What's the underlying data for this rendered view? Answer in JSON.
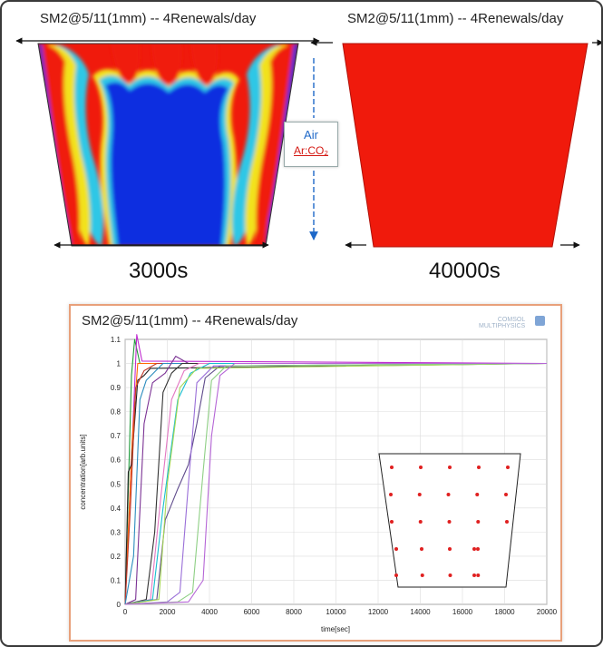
{
  "panels": [
    {
      "title": "SM2@5/11(1mm) -- 4Renewals/day",
      "time": "3000s"
    },
    {
      "title": "SM2@5/11(1mm) -- 4Renewals/day",
      "time": "40000s"
    }
  ],
  "legend": {
    "air": "Air",
    "mixture": "Ar:CO₂"
  },
  "colors": {
    "red": "#f01a0c",
    "blue": "#0a2fe0",
    "arrow_blue": "#1e68c8",
    "card_border": "#e8a07a"
  },
  "logo": {
    "line1": "COMSOL",
    "line2": "MULTIPHYSICS"
  },
  "chart_data": {
    "type": "line",
    "title": "SM2@5/11(1mm) -- 4Renewals/day",
    "xlabel": "time[sec]",
    "ylabel": "concentration[arb.units]",
    "xlim": [
      0,
      20000
    ],
    "ylim": [
      0,
      1.1
    ],
    "xticks": [
      0,
      2000,
      4000,
      6000,
      8000,
      10000,
      12000,
      14000,
      16000,
      18000,
      20000
    ],
    "xtick_labels": [
      "0",
      "2000",
      "4000",
      "6000",
      "8000",
      "10000",
      "12000",
      "14000",
      "16000",
      "18000",
      "20000"
    ],
    "yticks": [
      0,
      0.1,
      0.2,
      0.3,
      0.4,
      0.5,
      0.6,
      0.7,
      0.8,
      0.9,
      1,
      1.1
    ],
    "ytick_labels": [
      "0",
      "0.1",
      "0.2",
      "0.3",
      "0.4",
      "0.5",
      "0.6",
      "0.7",
      "0.8",
      "0.9",
      "1",
      "1.1"
    ],
    "grid": true,
    "series": [
      {
        "color": "#1f9a3a",
        "points": [
          [
            0,
            0
          ],
          [
            300,
            0.95
          ],
          [
            450,
            1.1
          ],
          [
            700,
            1.0
          ],
          [
            20000,
            1.0
          ]
        ]
      },
      {
        "color": "#c02cd0",
        "points": [
          [
            0,
            0
          ],
          [
            400,
            0.8
          ],
          [
            550,
            1.12
          ],
          [
            800,
            1.01
          ],
          [
            20000,
            1.0
          ]
        ]
      },
      {
        "color": "#ff6a00",
        "points": [
          [
            0,
            0
          ],
          [
            350,
            0.7
          ],
          [
            600,
            1.0
          ],
          [
            20000,
            1.0
          ]
        ]
      },
      {
        "color": "#222222",
        "points": [
          [
            0,
            0
          ],
          [
            150,
            0.55
          ],
          [
            300,
            0.58
          ],
          [
            600,
            0.93
          ],
          [
            900,
            0.95
          ],
          [
            1200,
            0.98
          ],
          [
            20000,
            1.0
          ]
        ]
      },
      {
        "color": "#c0392b",
        "points": [
          [
            0,
            0
          ],
          [
            250,
            0.4
          ],
          [
            500,
            0.9
          ],
          [
            900,
            0.97
          ],
          [
            1500,
            1.0
          ],
          [
            20000,
            1.0
          ]
        ]
      },
      {
        "color": "#2b8cbe",
        "points": [
          [
            0,
            0
          ],
          [
            400,
            0.2
          ],
          [
            700,
            0.85
          ],
          [
            1000,
            0.93
          ],
          [
            1800,
            1.0
          ],
          [
            20000,
            1.0
          ]
        ]
      },
      {
        "color": "#7b3294",
        "points": [
          [
            0,
            0
          ],
          [
            500,
            0.02
          ],
          [
            900,
            0.75
          ],
          [
            1300,
            0.92
          ],
          [
            1900,
            0.96
          ],
          [
            2400,
            1.03
          ],
          [
            3000,
            1.0
          ],
          [
            20000,
            1.0
          ]
        ]
      },
      {
        "color": "#333333",
        "points": [
          [
            0,
            0
          ],
          [
            1000,
            0.02
          ],
          [
            1400,
            0.3
          ],
          [
            1800,
            0.88
          ],
          [
            2200,
            0.96
          ],
          [
            2700,
            1.0
          ],
          [
            20000,
            1.0
          ]
        ]
      },
      {
        "color": "#e377c2",
        "points": [
          [
            0,
            0
          ],
          [
            1200,
            0.02
          ],
          [
            1700,
            0.45
          ],
          [
            2200,
            0.85
          ],
          [
            2800,
            0.97
          ],
          [
            3500,
            1.0
          ],
          [
            20000,
            1.0
          ]
        ]
      },
      {
        "color": "#17becf",
        "points": [
          [
            0,
            0
          ],
          [
            1300,
            0.02
          ],
          [
            1800,
            0.4
          ],
          [
            2500,
            0.85
          ],
          [
            3100,
            0.96
          ],
          [
            4000,
            1.0
          ],
          [
            20000,
            1.0
          ]
        ]
      },
      {
        "color": "#5f4b8b",
        "points": [
          [
            0,
            0
          ],
          [
            1500,
            0.02
          ],
          [
            1900,
            0.35
          ],
          [
            2500,
            0.48
          ],
          [
            3000,
            0.58
          ],
          [
            3400,
            0.75
          ],
          [
            3800,
            0.94
          ],
          [
            4500,
            0.99
          ],
          [
            20000,
            1.0
          ]
        ]
      },
      {
        "color": "#a6d854",
        "points": [
          [
            0,
            0
          ],
          [
            1600,
            0.02
          ],
          [
            2000,
            0.5
          ],
          [
            2600,
            0.9
          ],
          [
            3400,
            0.98
          ],
          [
            20000,
            1.0
          ]
        ]
      },
      {
        "color": "#9a6fd8",
        "points": [
          [
            0,
            0
          ],
          [
            2000,
            0.01
          ],
          [
            2600,
            0.05
          ],
          [
            3000,
            0.5
          ],
          [
            3400,
            0.92
          ],
          [
            4200,
            0.99
          ],
          [
            20000,
            1.0
          ]
        ]
      },
      {
        "color": "#8ecf84",
        "points": [
          [
            0,
            0
          ],
          [
            2500,
            0.01
          ],
          [
            3200,
            0.05
          ],
          [
            3700,
            0.55
          ],
          [
            4100,
            0.93
          ],
          [
            4800,
            0.99
          ],
          [
            20000,
            1.0
          ]
        ]
      },
      {
        "color": "#b565d6",
        "points": [
          [
            0,
            0
          ],
          [
            3000,
            0.01
          ],
          [
            3700,
            0.1
          ],
          [
            4100,
            0.7
          ],
          [
            4500,
            0.95
          ],
          [
            5200,
            1.0
          ],
          [
            20000,
            1.0
          ]
        ]
      }
    ],
    "inset": {
      "type": "scatter",
      "rows": 5,
      "cols": 5,
      "point_color": "#e02020"
    }
  }
}
